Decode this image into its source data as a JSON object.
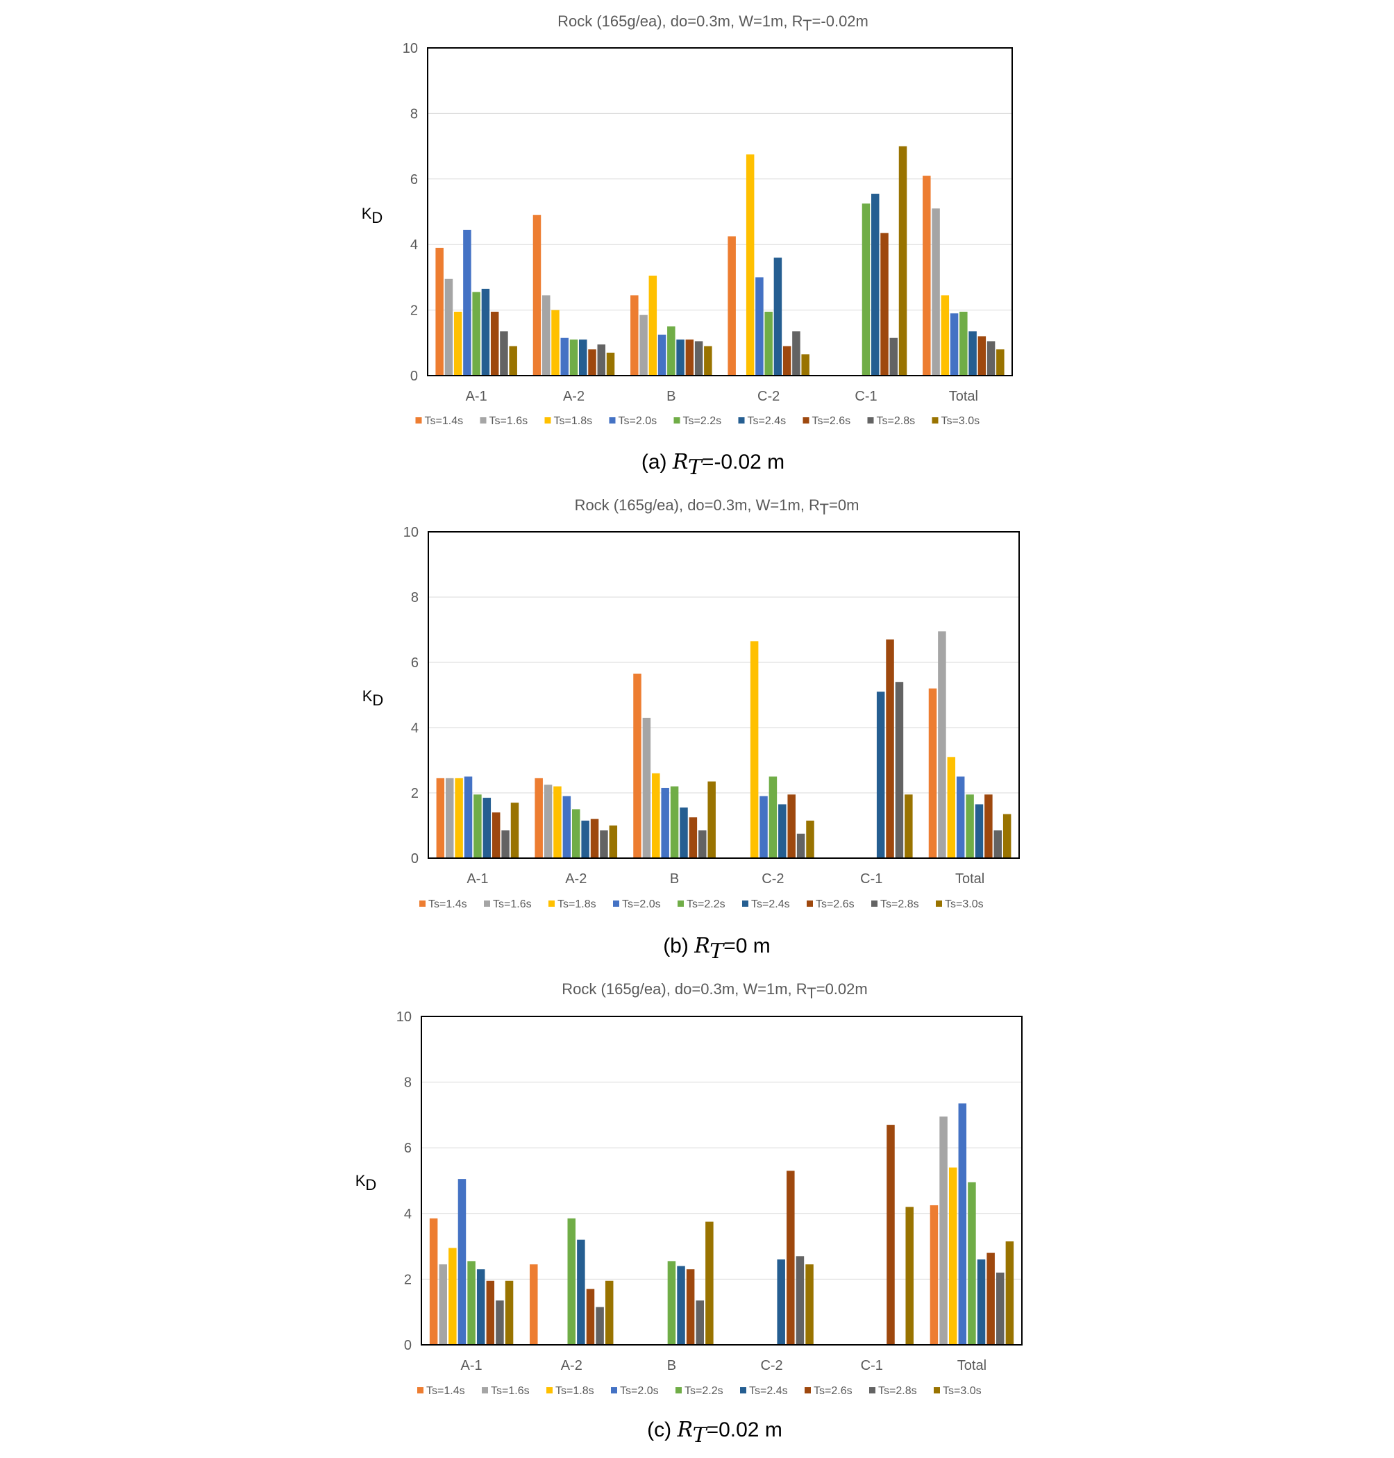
{
  "series_names": [
    "Ts=1.4s",
    "Ts=1.6s",
    "Ts=1.8s",
    "Ts=2.0s",
    "Ts=2.2s",
    "Ts=2.4s",
    "Ts=2.6s",
    "Ts=2.8s",
    "Ts=3.0s"
  ],
  "series_colors": [
    "#ED7D31",
    "#A5A5A5",
    "#FFC000",
    "#4472C4",
    "#70AD47",
    "#255E91",
    "#9E480E",
    "#636363",
    "#997300"
  ],
  "chart_data": [
    {
      "type": "bar",
      "title_prefix": "Rock (165g/ea), do=0.3m, W=1m, R",
      "title_sub": "T",
      "title_suffix": "=-0.02m",
      "ylabel_main": "K",
      "ylabel_sub": "D",
      "xlabel": "",
      "ylim": [
        0,
        10
      ],
      "yticks": [
        "0",
        "2",
        "4",
        "6",
        "8",
        "10"
      ],
      "grid": true,
      "legend": "bottom",
      "categories": [
        "A-1",
        "A-2",
        "B",
        "C-2",
        "C-1",
        "Total"
      ],
      "series": [
        {
          "name": "Ts=1.4s",
          "values": [
            3.9,
            4.9,
            2.45,
            4.25,
            0,
            6.1
          ]
        },
        {
          "name": "Ts=1.6s",
          "values": [
            2.95,
            2.45,
            1.85,
            0,
            0,
            5.1
          ]
        },
        {
          "name": "Ts=1.8s",
          "values": [
            1.95,
            2.0,
            3.05,
            6.75,
            0,
            2.45
          ]
        },
        {
          "name": "Ts=2.0s",
          "values": [
            4.45,
            1.15,
            1.25,
            3.0,
            0,
            1.9
          ]
        },
        {
          "name": "Ts=2.2s",
          "values": [
            2.55,
            1.1,
            1.5,
            1.95,
            5.25,
            1.95
          ]
        },
        {
          "name": "Ts=2.4s",
          "values": [
            2.65,
            1.1,
            1.1,
            3.6,
            5.55,
            1.35
          ]
        },
        {
          "name": "Ts=2.6s",
          "values": [
            1.95,
            0.8,
            1.1,
            0.9,
            4.35,
            1.2
          ]
        },
        {
          "name": "Ts=2.8s",
          "values": [
            1.35,
            0.95,
            1.05,
            1.35,
            1.15,
            1.05
          ]
        },
        {
          "name": "Ts=3.0s",
          "values": [
            0.9,
            0.7,
            0.9,
            0.65,
            7.0,
            0.8
          ]
        }
      ],
      "caption_label": "(a)",
      "caption_var": "R",
      "caption_sub": "T",
      "caption_value": "=-0.02 m"
    },
    {
      "type": "bar",
      "title_prefix": "Rock (165g/ea), do=0.3m, W=1m, R",
      "title_sub": "T",
      "title_suffix": "=0m",
      "ylabel_main": "K",
      "ylabel_sub": "D",
      "xlabel": "",
      "ylim": [
        0,
        10
      ],
      "yticks": [
        "0",
        "2",
        "4",
        "6",
        "8",
        "10"
      ],
      "grid": true,
      "legend": "bottom",
      "categories": [
        "A-1",
        "A-2",
        "B",
        "C-2",
        "C-1",
        "Total"
      ],
      "series": [
        {
          "name": "Ts=1.4s",
          "values": [
            2.45,
            2.45,
            5.65,
            0,
            0,
            5.2
          ]
        },
        {
          "name": "Ts=1.6s",
          "values": [
            2.45,
            2.25,
            4.3,
            0,
            0,
            6.95
          ]
        },
        {
          "name": "Ts=1.8s",
          "values": [
            2.45,
            2.2,
            2.6,
            6.65,
            0,
            3.1
          ]
        },
        {
          "name": "Ts=2.0s",
          "values": [
            2.5,
            1.9,
            2.15,
            1.9,
            0,
            2.5
          ]
        },
        {
          "name": "Ts=2.2s",
          "values": [
            1.95,
            1.5,
            2.2,
            2.5,
            0,
            1.95
          ]
        },
        {
          "name": "Ts=2.4s",
          "values": [
            1.85,
            1.15,
            1.55,
            1.65,
            5.1,
            1.65
          ]
        },
        {
          "name": "Ts=2.6s",
          "values": [
            1.4,
            1.2,
            1.25,
            1.95,
            6.7,
            1.95
          ]
        },
        {
          "name": "Ts=2.8s",
          "values": [
            0.85,
            0.85,
            0.85,
            0.75,
            5.4,
            0.85
          ]
        },
        {
          "name": "Ts=3.0s",
          "values": [
            1.7,
            1.0,
            2.35,
            1.15,
            1.95,
            1.35
          ]
        }
      ],
      "caption_label": "(b)",
      "caption_var": "R",
      "caption_sub": "T",
      "caption_value": "=0 m"
    },
    {
      "type": "bar",
      "title_prefix": "Rock (165g/ea), do=0.3m, W=1m, R",
      "title_sub": "T",
      "title_suffix": "=0.02m",
      "ylabel_main": "K",
      "ylabel_sub": "D",
      "xlabel": "",
      "ylim": [
        0,
        10
      ],
      "yticks": [
        "0",
        "2",
        "4",
        "6",
        "8",
        "10"
      ],
      "grid": true,
      "legend": "bottom",
      "categories": [
        "A-1",
        "A-2",
        "B",
        "C-2",
        "C-1",
        "Total"
      ],
      "series": [
        {
          "name": "Ts=1.4s",
          "values": [
            3.85,
            2.45,
            0,
            0,
            0,
            4.25
          ]
        },
        {
          "name": "Ts=1.6s",
          "values": [
            2.45,
            0,
            0,
            0,
            0,
            6.95
          ]
        },
        {
          "name": "Ts=1.8s",
          "values": [
            2.95,
            0,
            0,
            0,
            0,
            5.4
          ]
        },
        {
          "name": "Ts=2.0s",
          "values": [
            5.05,
            0,
            0,
            0,
            0,
            7.35
          ]
        },
        {
          "name": "Ts=2.2s",
          "values": [
            2.55,
            3.85,
            2.55,
            0,
            0,
            4.95
          ]
        },
        {
          "name": "Ts=2.4s",
          "values": [
            2.3,
            3.2,
            2.4,
            2.6,
            0,
            2.6
          ]
        },
        {
          "name": "Ts=2.6s",
          "values": [
            1.95,
            1.7,
            2.3,
            5.3,
            6.7,
            2.8
          ]
        },
        {
          "name": "Ts=2.8s",
          "values": [
            1.35,
            1.15,
            1.35,
            2.7,
            0,
            2.2
          ]
        },
        {
          "name": "Ts=3.0s",
          "values": [
            1.95,
            1.95,
            3.75,
            2.45,
            4.2,
            3.15
          ]
        }
      ],
      "caption_label": "(c)",
      "caption_var": "R",
      "caption_sub": "T",
      "caption_value": "=0.02 m"
    }
  ]
}
